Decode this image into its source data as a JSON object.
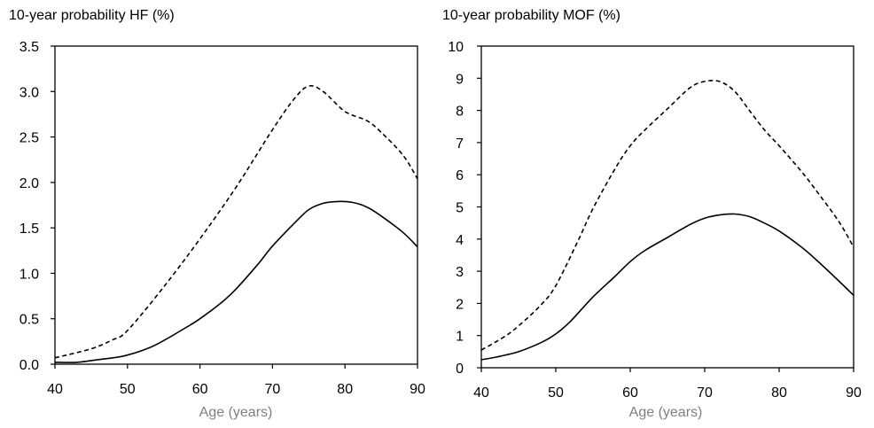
{
  "chart_data": [
    {
      "type": "line",
      "title": "10-year probability HF (%)",
      "xlabel": "Age (years)",
      "ylabel": "",
      "xlim": [
        40,
        90
      ],
      "ylim": [
        0,
        3.5
      ],
      "x_ticks": [
        "40",
        "50",
        "60",
        "70",
        "80",
        "90"
      ],
      "y_ticks": [
        "0.0",
        "0.5",
        "1.0",
        "1.5",
        "2.0",
        "2.5",
        "3.0",
        "3.5"
      ],
      "grid": false,
      "legend": "none",
      "series": [
        {
          "style": "dashed",
          "x": [
            40,
            45,
            48,
            50,
            55,
            60,
            65,
            70,
            73,
            75,
            77,
            80,
            83,
            85,
            88,
            90
          ],
          "y": [
            0.07,
            0.17,
            0.27,
            0.37,
            0.85,
            1.38,
            1.95,
            2.58,
            2.92,
            3.06,
            3.0,
            2.78,
            2.68,
            2.55,
            2.3,
            2.04
          ]
        },
        {
          "style": "solid",
          "x": [
            40,
            43,
            45,
            48,
            50,
            53,
            55,
            58,
            60,
            63,
            65,
            68,
            70,
            73,
            75,
            77,
            79,
            81,
            83,
            85,
            88,
            90
          ],
          "y": [
            0.02,
            0.02,
            0.04,
            0.07,
            0.1,
            0.18,
            0.26,
            0.4,
            0.5,
            0.68,
            0.83,
            1.1,
            1.3,
            1.55,
            1.7,
            1.77,
            1.79,
            1.78,
            1.73,
            1.63,
            1.45,
            1.29
          ]
        }
      ]
    },
    {
      "type": "line",
      "title": "10-year probability MOF (%)",
      "xlabel": "Age (years)",
      "ylabel": "",
      "xlim": [
        40,
        90
      ],
      "ylim": [
        0,
        10
      ],
      "x_ticks": [
        "40",
        "50",
        "60",
        "70",
        "80",
        "90"
      ],
      "y_ticks": [
        "0",
        "1",
        "2",
        "3",
        "4",
        "5",
        "6",
        "7",
        "8",
        "9",
        "10"
      ],
      "grid": false,
      "legend": "none",
      "series": [
        {
          "style": "dashed",
          "x": [
            40,
            43,
            45,
            48,
            50,
            53,
            55,
            58,
            60,
            62,
            65,
            68,
            70,
            72,
            74,
            76,
            78,
            80,
            83,
            85,
            88,
            90
          ],
          "y": [
            0.55,
            0.95,
            1.3,
            1.95,
            2.55,
            3.95,
            4.95,
            6.2,
            6.9,
            7.4,
            8.05,
            8.7,
            8.9,
            8.9,
            8.6,
            8.0,
            7.4,
            6.9,
            6.1,
            5.5,
            4.55,
            3.75
          ]
        },
        {
          "style": "solid",
          "x": [
            40,
            42,
            45,
            48,
            50,
            52,
            55,
            58,
            60,
            62,
            65,
            68,
            70,
            72,
            74,
            76,
            78,
            80,
            83,
            85,
            88,
            90
          ],
          "y": [
            0.25,
            0.33,
            0.5,
            0.78,
            1.05,
            1.45,
            2.2,
            2.85,
            3.3,
            3.65,
            4.05,
            4.45,
            4.65,
            4.75,
            4.78,
            4.7,
            4.5,
            4.25,
            3.75,
            3.35,
            2.7,
            2.25
          ]
        }
      ]
    }
  ]
}
